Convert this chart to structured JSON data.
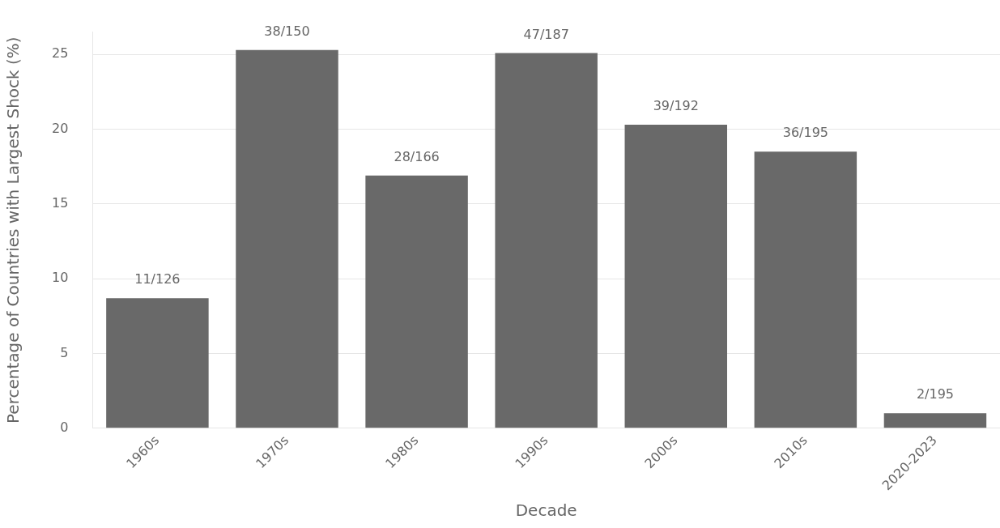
{
  "chart_data": {
    "type": "bar",
    "xlabel": "Decade",
    "ylabel": "Percentage of Countries with Largest Shock (%)",
    "categories": [
      "1960s",
      "1970s",
      "1980s",
      "1990s",
      "2000s",
      "2010s",
      "2020-2023"
    ],
    "values": [
      8.7,
      25.3,
      16.9,
      25.1,
      20.3,
      18.5,
      1.0
    ],
    "value_labels": [
      "11/126",
      "38/150",
      "28/166",
      "47/187",
      "39/192",
      "36/195",
      "2/195"
    ],
    "color": "#696969",
    "ylim": [
      0,
      26.5
    ],
    "yticks": [
      0,
      5,
      10,
      15,
      20,
      25
    ],
    "grid": "y",
    "legend": false
  }
}
